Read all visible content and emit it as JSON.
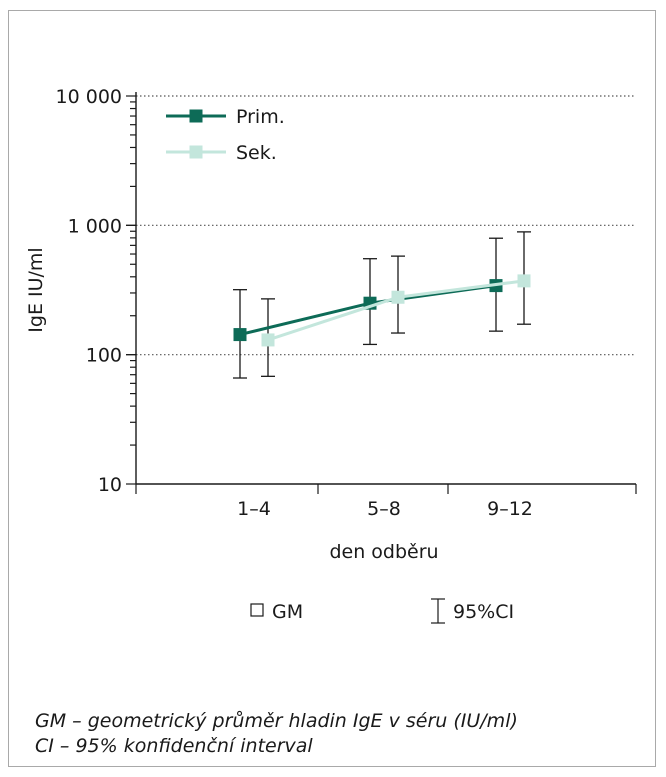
{
  "chart_data": {
    "type": "line",
    "y_scale": "log",
    "ylim": [
      10,
      10000
    ],
    "y_ticks": [
      {
        "value": 10,
        "label": "10"
      },
      {
        "value": 100,
        "label": "100"
      },
      {
        "value": 1000,
        "label": "1 000"
      },
      {
        "value": 10000,
        "label": "10 000"
      }
    ],
    "categories": [
      "1–4",
      "5–8",
      "9–12"
    ],
    "xlabel": "den odběru",
    "ylabel": "IgE IU/ml",
    "grid": "dotted horizontal at major ticks",
    "legend_position": "top-left",
    "series": [
      {
        "name": "Prim.",
        "color": "#0d6b57",
        "values": [
          143,
          250,
          342
        ],
        "ci_low": [
          66,
          120,
          152
        ],
        "ci_high": [
          318,
          552,
          795
        ]
      },
      {
        "name": "Sek.",
        "color": "#c3e6dc",
        "values": [
          130,
          278,
          372
        ],
        "ci_low": [
          68,
          147,
          172
        ],
        "ci_high": [
          270,
          578,
          890
        ]
      }
    ]
  },
  "key": {
    "gm_label": "GM",
    "ci_label": "95%CI"
  },
  "caption": {
    "line1": "GM – geometrický průměr hladin IgE v séru (IU/ml)",
    "line2": "CI – 95% konfidenční interval"
  }
}
